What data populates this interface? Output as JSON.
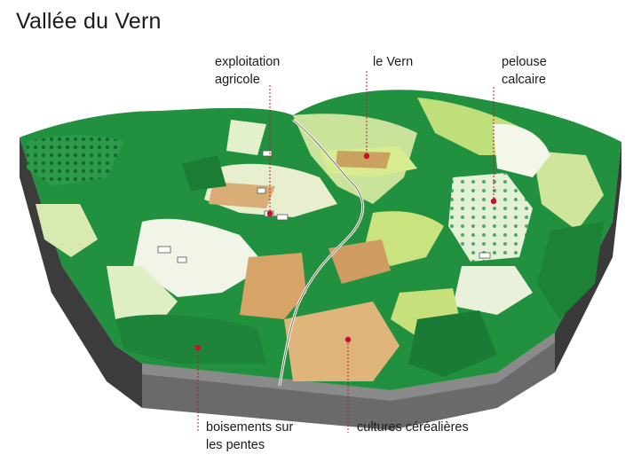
{
  "title": "Vallée du Vern",
  "labels": {
    "exploitation": [
      "exploitation",
      "agricole"
    ],
    "vern": [
      "le Vern"
    ],
    "pelouse": [
      "pelouse",
      "calcaire"
    ],
    "boisements": [
      "boisements sur",
      "les pentes"
    ],
    "cultures": [
      "cultures céréalières"
    ]
  },
  "colors": {
    "accent": "#c8102e",
    "forest": "#1e8a3c",
    "meadow": "#b7d86a",
    "field": "#d8a868",
    "rock": "#4a4a4a"
  }
}
